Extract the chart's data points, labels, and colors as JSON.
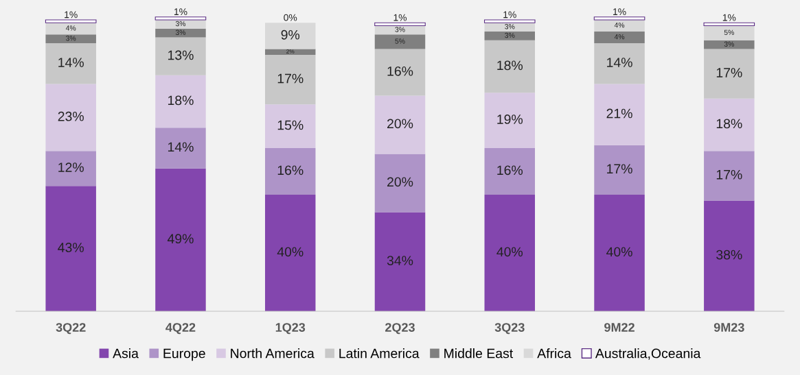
{
  "chart_data": {
    "type": "bar",
    "stacked": true,
    "legend": "bottom",
    "categories": [
      "3Q22",
      "4Q22",
      "1Q23",
      "2Q23",
      "3Q23",
      "9M22",
      "9M23"
    ],
    "series": [
      {
        "name": "Asia",
        "color": "#8346ae",
        "values": [
          43,
          49,
          40,
          34,
          40,
          40,
          38
        ],
        "value_labels": [
          "43%",
          "49%",
          "40%",
          "34%",
          "40%",
          "40%",
          "38%"
        ]
      },
      {
        "name": "Europe",
        "color": "#ae94c8",
        "values": [
          12,
          14,
          16,
          20,
          16,
          17,
          17
        ],
        "value_labels": [
          "12%",
          "14%",
          "16%",
          "20%",
          "16%",
          "17%",
          "17%"
        ]
      },
      {
        "name": "North America",
        "color": "#d8c9e3",
        "values": [
          23,
          18,
          15,
          20,
          19,
          21,
          18
        ],
        "value_labels": [
          "23%",
          "18%",
          "15%",
          "20%",
          "19%",
          "21%",
          "18%"
        ]
      },
      {
        "name": "Latin America",
        "color": "#c8c8c8",
        "values": [
          14,
          13,
          17,
          16,
          18,
          14,
          17
        ],
        "value_labels": [
          "14%",
          "13%",
          "17%",
          "16%",
          "18%",
          "14%",
          "17%"
        ]
      },
      {
        "name": "Middle East",
        "color": "#808080",
        "values": [
          3,
          3,
          2,
          5,
          3,
          4,
          3
        ],
        "value_labels": [
          "3%",
          "3%",
          "2%",
          "5%",
          "3%",
          "4%",
          "3%"
        ]
      },
      {
        "name": "Africa",
        "color": "#d9d9d9",
        "values": [
          4,
          3,
          9,
          3,
          3,
          4,
          5
        ],
        "value_labels": [
          "4%",
          "3%",
          "9%",
          "3%",
          "3%",
          "4%",
          "5%"
        ]
      },
      {
        "name": "Australia,Oceania",
        "color": "#ffffff",
        "values": [
          1,
          1,
          0,
          1,
          1,
          1,
          1
        ],
        "value_labels": [
          "1%",
          "1%",
          "0%",
          "1%",
          "1%",
          "1%",
          "1%"
        ]
      }
    ]
  }
}
